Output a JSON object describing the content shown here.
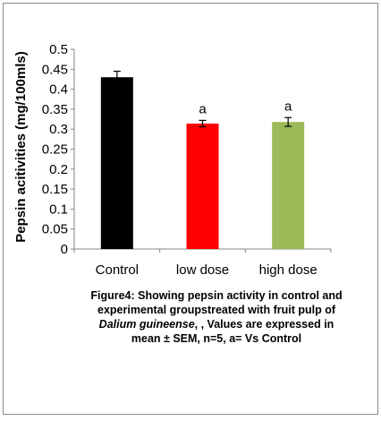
{
  "chart_data": {
    "type": "bar",
    "title": "",
    "xlabel": "",
    "ylabel": "Pepsin acitivities (mg/100mls)",
    "ylim": [
      0,
      0.5
    ],
    "yticks": [
      "0",
      "0.05",
      "0.1",
      "0.15",
      "0.2",
      "0.25",
      "0.3",
      "0.35",
      "0.4",
      "0.45",
      "0.5"
    ],
    "ytick_values": [
      0,
      0.05,
      0.1,
      0.15,
      0.2,
      0.25,
      0.3,
      0.35,
      0.4,
      0.45,
      0.5
    ],
    "grid": false,
    "categories": [
      "Control",
      "low dose",
      "high dose"
    ],
    "values": [
      0.43,
      0.314,
      0.318
    ],
    "errors": [
      0.015,
      0.008,
      0.011
    ],
    "annotations": [
      "",
      "a",
      "a"
    ],
    "colors": [
      "#000000",
      "#ff0000",
      "#9bbb59"
    ]
  },
  "caption": {
    "line1": "Figure4: Showing pepsin activity in control and",
    "line2": "experimental groupstreated with fruit pulp of",
    "line3_italic": "Dalium guineense",
    "line3_rest": ", , Values are expressed in",
    "line4": "mean ± SEM, n=5, a= Vs  Control"
  }
}
